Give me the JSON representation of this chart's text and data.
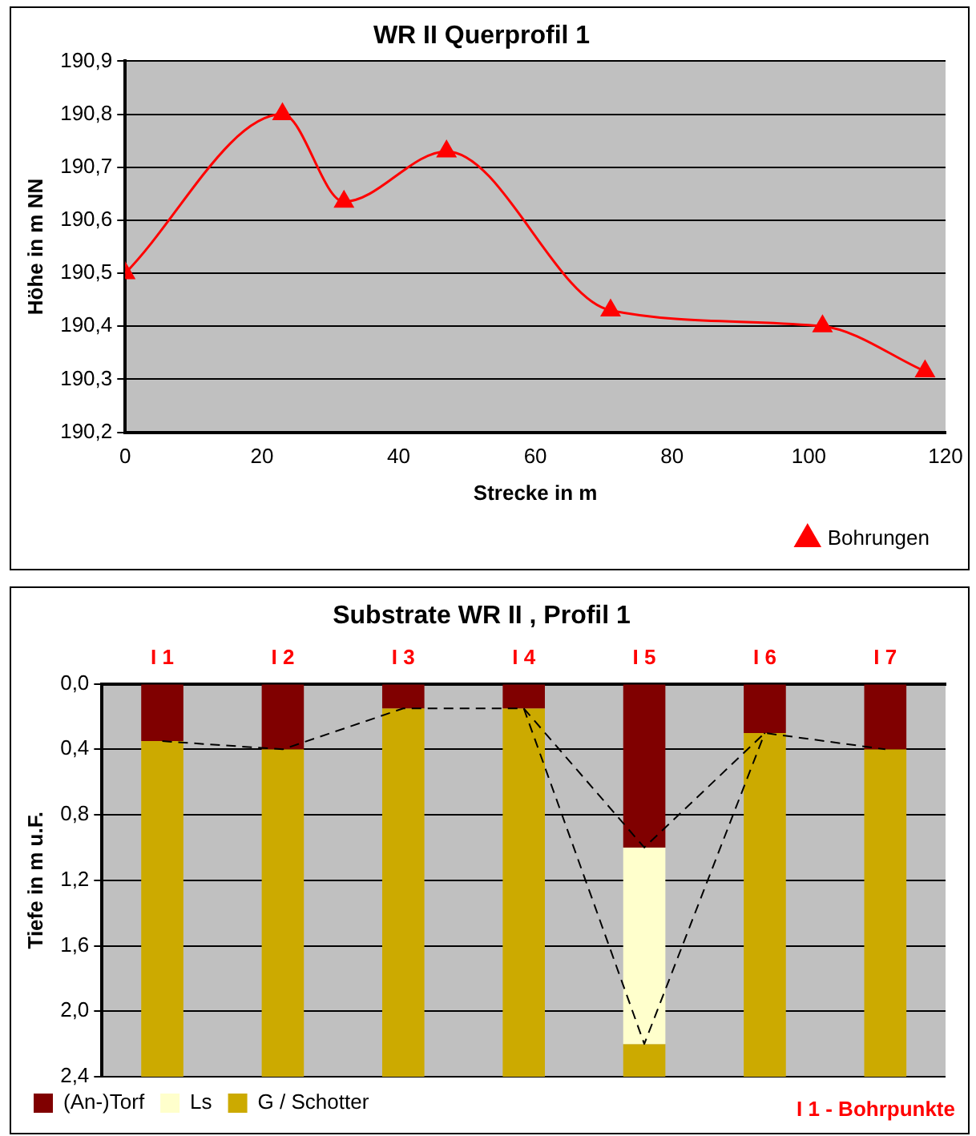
{
  "chart_data": [
    {
      "type": "line",
      "title": "WR II Querprofil 1",
      "xlabel": "Strecke in m",
      "ylabel": "Höhe in m NN",
      "x": [
        0,
        23,
        32,
        47,
        71,
        102,
        117
      ],
      "series": [
        {
          "name": "Bohrungen",
          "color": "#ff0000",
          "values": [
            190.5,
            190.8,
            190.635,
            190.73,
            190.43,
            190.4,
            190.315
          ]
        }
      ],
      "xlim": [
        0,
        120
      ],
      "xticks": [
        0,
        20,
        40,
        60,
        80,
        100,
        120
      ],
      "ylim": [
        190.2,
        190.9
      ],
      "yticks": [
        {
          "value": 190.2,
          "label": "190,2"
        },
        {
          "value": 190.3,
          "label": "190,3"
        },
        {
          "value": 190.4,
          "label": "190,4"
        },
        {
          "value": 190.5,
          "label": "190,5"
        },
        {
          "value": 190.6,
          "label": "190,6"
        },
        {
          "value": 190.7,
          "label": "190,7"
        },
        {
          "value": 190.8,
          "label": "190,8"
        },
        {
          "value": 190.9,
          "label": "190,9"
        }
      ],
      "grid": "y",
      "legend": "bottom right",
      "marker": "triangle",
      "line_style": "solid"
    },
    {
      "type": "bar",
      "title": "Substrate WR II , Profil 1",
      "ylabel": "Tiefe in m u.F.",
      "stacked": true,
      "categories": [
        "I 1",
        "I 2",
        "I 3",
        "I 4",
        "I 5",
        "I 6",
        "I 7"
      ],
      "series": [
        {
          "name": "(An-)Torf",
          "color": "#800000",
          "values": [
            0.35,
            0.4,
            0.15,
            0.15,
            1.0,
            0.3,
            0.4
          ]
        },
        {
          "name": "Ls",
          "color": "#ffffcc",
          "values": [
            0,
            0,
            0,
            0,
            1.2,
            0,
            0
          ]
        },
        {
          "name": "G / Schotter",
          "color": "#ccaa00",
          "values": [
            2.05,
            2.0,
            2.25,
            2.25,
            0.2,
            2.1,
            2.0
          ]
        },
        {
          "type": "line",
          "color": "#000000",
          "line_style": "dashed",
          "values": [
            0.35,
            0.4,
            0.15,
            0.15,
            1.0,
            0.3,
            0.4
          ]
        },
        {
          "type": "line",
          "color": "#000000",
          "line_style": "dashed",
          "values": [
            null,
            null,
            null,
            0.15,
            2.2,
            0.3,
            null
          ]
        }
      ],
      "ylim": [
        2.4,
        0
      ],
      "yticks": [
        {
          "value": 0,
          "label": "0,0"
        },
        {
          "value": 0.4,
          "label": "0,4"
        },
        {
          "value": 0.8,
          "label": "0,8"
        },
        {
          "value": 1.2,
          "label": "1,2"
        },
        {
          "value": 1.6,
          "label": "1,6"
        },
        {
          "value": 2.0,
          "label": "2,0"
        },
        {
          "value": 2.4,
          "label": "2,4"
        }
      ],
      "grid": "y",
      "legend": "bottom left",
      "marker": "none",
      "annotations": [
        "I 1 - Bohrpunkte"
      ]
    }
  ]
}
